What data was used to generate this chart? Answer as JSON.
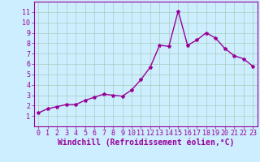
{
  "x": [
    0,
    1,
    2,
    3,
    4,
    5,
    6,
    7,
    8,
    9,
    10,
    11,
    12,
    13,
    14,
    15,
    16,
    17,
    18,
    19,
    20,
    21,
    22,
    23
  ],
  "y": [
    1.3,
    1.7,
    1.9,
    2.1,
    2.1,
    2.5,
    2.8,
    3.1,
    3.0,
    2.9,
    3.5,
    4.5,
    5.7,
    7.8,
    7.7,
    11.1,
    7.8,
    8.3,
    9.0,
    8.5,
    7.5,
    6.8,
    6.5,
    5.8
  ],
  "line_color": "#990099",
  "marker": "*",
  "marker_size": 3,
  "bg_color": "#cceeff",
  "grid_color": "#aaccbb",
  "xlabel": "Windchill (Refroidissement éolien,°C)",
  "xlabel_color": "#990099",
  "ylim": [
    0,
    12
  ],
  "xlim": [
    -0.5,
    23.5
  ],
  "yticks": [
    1,
    2,
    3,
    4,
    5,
    6,
    7,
    8,
    9,
    10,
    11
  ],
  "xticks": [
    0,
    1,
    2,
    3,
    4,
    5,
    6,
    7,
    8,
    9,
    10,
    11,
    12,
    13,
    14,
    15,
    16,
    17,
    18,
    19,
    20,
    21,
    22,
    23
  ],
  "tick_color": "#990099",
  "spine_color": "#990099",
  "tick_fontsize": 6,
  "xlabel_fontsize": 7,
  "line_width": 1.0
}
